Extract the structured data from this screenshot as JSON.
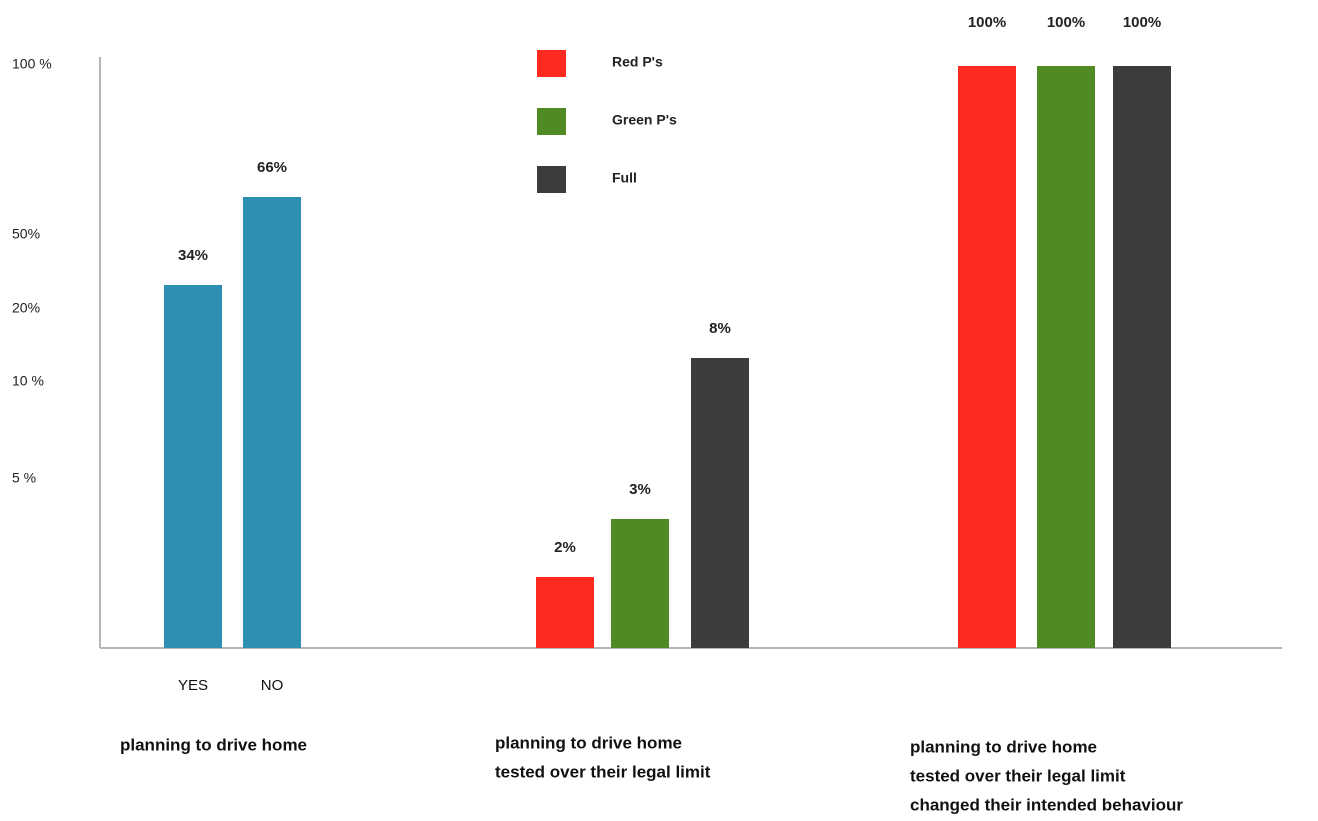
{
  "chart_data": {
    "type": "bar",
    "y_axis": {
      "scale": "nonlinear",
      "ticks": [
        {
          "label": "100 %",
          "value": 100
        },
        {
          "label": "50%",
          "value": 50
        },
        {
          "label": "20%",
          "value": 20
        },
        {
          "label": "10 %",
          "value": 10
        },
        {
          "label": "5 %",
          "value": 5
        }
      ]
    },
    "grid": false,
    "legend": {
      "placement": "top-center",
      "entries": [
        {
          "name": "Red P's",
          "color": "#ff2a1f"
        },
        {
          "name": "Green P's",
          "color": "#4f8a22"
        },
        {
          "name": "Full",
          "color": "#3c3c3c"
        }
      ]
    },
    "groups": [
      {
        "label_lines": [
          "planning to drive home"
        ],
        "bars": [
          {
            "category": "YES",
            "value": 34,
            "label": "34%",
            "color": "#2f8fb3"
          },
          {
            "category": "NO",
            "value": 66,
            "label": "66%",
            "color": "#2f8fb3"
          }
        ]
      },
      {
        "label_lines": [
          "planning to drive home",
          "tested over their legal limit"
        ],
        "bars": [
          {
            "category": "",
            "series": "Red P's",
            "value": 2,
            "label": "2%",
            "color": "#ff2a1f"
          },
          {
            "category": "",
            "series": "Green P's",
            "value": 3,
            "label": "3%",
            "color": "#4f8a22"
          },
          {
            "category": "",
            "series": "Full",
            "value": 8,
            "label": "8%",
            "color": "#3c3c3c"
          }
        ]
      },
      {
        "label_lines": [
          "planning to drive home",
          "tested over their legal limit",
          "changed their intended behaviour"
        ],
        "bars": [
          {
            "category": "",
            "series": "Red P's",
            "value": 100,
            "label": "100%",
            "color": "#ff2a1f"
          },
          {
            "category": "",
            "series": "Green P's",
            "value": 100,
            "label": "100%",
            "color": "#4f8a22"
          },
          {
            "category": "",
            "series": "Full",
            "value": 100,
            "label": "100%",
            "color": "#3c3c3c"
          }
        ]
      }
    ]
  }
}
